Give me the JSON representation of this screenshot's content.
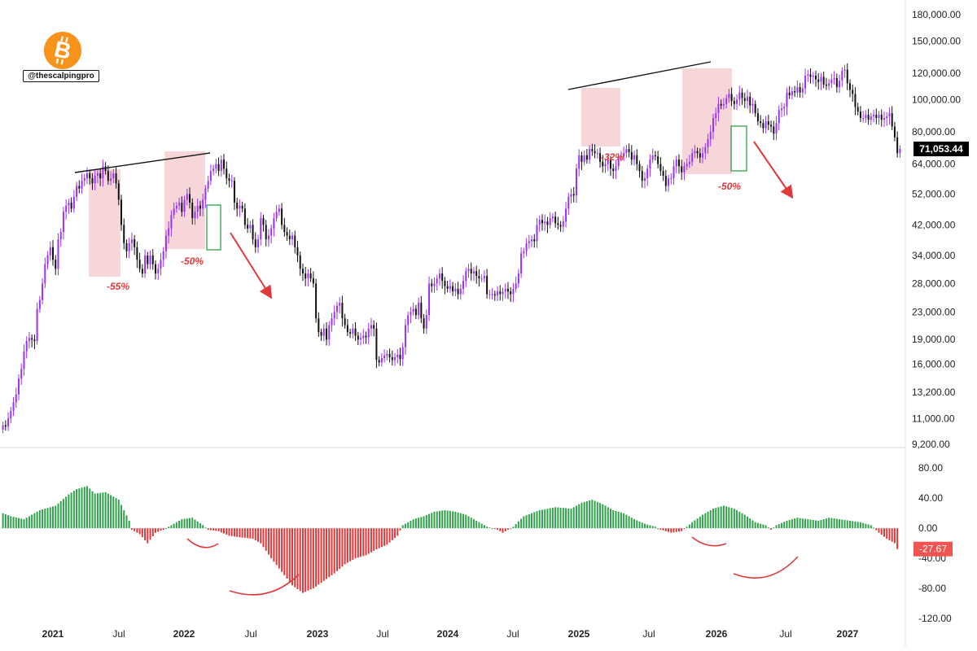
{
  "branding": {
    "logo_icon": "bitcoin-logo-icon",
    "logo_color": "#F7931A",
    "handle": "@thescalpingpro"
  },
  "colors": {
    "bull": "#9B30FF",
    "bear": "#111111",
    "hist_pos": "#2FA24A",
    "hist_neg": "#E0393B",
    "annotation": "#E0393B",
    "zone_fill": "#F6CFD4",
    "green_box": "#2FA24A",
    "price_tag_bg": "#000000",
    "neg_tag_bg": "#F05350"
  },
  "chart_data": [
    {
      "type": "candlestick",
      "scale": "log",
      "ylim": [
        9200,
        180000
      ],
      "xlim": [
        "2020-10-12",
        "2027-05-03"
      ],
      "y_ticks": [
        "180,000.00",
        "150,000.00",
        "120,000.00",
        "100,000.00",
        "80,000.00",
        "64,000.00",
        "52,000.00",
        "42,000.00",
        "34,000.00",
        "28,000.00",
        "23,000.00",
        "19,000.00",
        "16,000.00",
        "13,200.00",
        "11,000.00",
        "9,200.00"
      ],
      "last_price_label": "71,053.44",
      "candles_weekly_close": [
        10500,
        10400,
        11000,
        11600,
        12300,
        13000,
        14500,
        15500,
        17500,
        18800,
        19200,
        19000,
        18800,
        23500,
        25000,
        28000,
        32000,
        34000,
        36000,
        33000,
        31000,
        38000,
        40000,
        46000,
        48000,
        49000,
        47000,
        51000,
        55000,
        54000,
        57000,
        58000,
        60000,
        58000,
        56000,
        59000,
        60000,
        58000,
        63000,
        61000,
        57000,
        58000,
        60000,
        56000,
        50000,
        42000,
        37000,
        35000,
        37000,
        38000,
        36000,
        33000,
        31000,
        30000,
        34000,
        32000,
        34000,
        32000,
        30000,
        31000,
        33000,
        35000,
        39000,
        41000,
        45000,
        47000,
        48000,
        49000,
        46000,
        50000,
        52000,
        49000,
        44000,
        46000,
        48000,
        47000,
        50000,
        54000,
        57000,
        61000,
        62000,
        64000,
        61000,
        66000,
        62000,
        58000,
        57000,
        57000,
        49000,
        47000,
        48000,
        47000,
        42000,
        41000,
        42000,
        38000,
        36000,
        38000,
        44000,
        42000,
        38000,
        39000,
        41000,
        44000,
        46000,
        47000,
        42000,
        40000,
        39000,
        38000,
        39000,
        36000,
        34000,
        31000,
        30000,
        29000,
        30000,
        29000,
        28000,
        22000,
        20000,
        19500,
        20500,
        19000,
        21000,
        22000,
        23000,
        24000,
        24500,
        22000,
        21000,
        20000,
        19800,
        20500,
        19500,
        19000,
        19200,
        19500,
        19300,
        20500,
        21000,
        20500,
        16500,
        16200,
        16700,
        17000,
        17200,
        16800,
        16500,
        16800,
        17100,
        16600,
        18000,
        21000,
        22500,
        23000,
        23500,
        22500,
        24500,
        22000,
        20500,
        22500,
        28000,
        27500,
        28000,
        29000,
        30000,
        28500,
        27500,
        27000,
        27500,
        26500,
        27000,
        26000,
        27000,
        28500,
        30500,
        31000,
        30000,
        30500,
        29500,
        29000,
        29000,
        29500,
        26000,
        26000,
        26000,
        25800,
        26500,
        26000,
        26500,
        27000,
        26500,
        26000,
        27000,
        28000,
        30000,
        34500,
        35000,
        37000,
        37500,
        38000,
        37500,
        42000,
        43500,
        42500,
        43000,
        42000,
        44000,
        44500,
        42500,
        42000,
        41500,
        43000,
        47000,
        51000,
        52000,
        51500,
        62000,
        68000,
        65000,
        68000,
        66000,
        71000,
        70000,
        69000,
        69000,
        65000,
        63000,
        64000,
        66000,
        62000,
        61000,
        63000,
        67000,
        67500,
        69000,
        71000,
        69500,
        66000,
        68000,
        64000,
        61000,
        57000,
        58000,
        62000,
        66000,
        68000,
        67500,
        64000,
        61000,
        59000,
        55000,
        58000,
        58000,
        63000,
        66000,
        63000,
        60500,
        63000,
        64000,
        65000,
        69000,
        70000,
        69000,
        67000,
        69000,
        72000,
        76000,
        80000,
        88000,
        91000,
        97000,
        96000,
        97000,
        101000,
        104000,
        99000,
        97000,
        100000,
        105000,
        101000,
        99000,
        102000,
        96000,
        97000,
        91000,
        86000,
        85000,
        82000,
        86000,
        84000,
        83000,
        79000,
        85000,
        93000,
        94000,
        95000,
        105000,
        103000,
        106000,
        105000,
        109000,
        105000,
        108000,
        118000,
        119000,
        117000,
        118000,
        115000,
        113000,
        117000,
        111000,
        110000,
        112000,
        115000,
        116000,
        109000,
        114000,
        122000,
        123000,
        112000,
        107000,
        104000,
        95000,
        92000,
        88000,
        88000,
        90000,
        87000,
        89000,
        90000,
        88000,
        90000,
        87000,
        88000,
        89000,
        91000,
        83000,
        77000,
        69000,
        71053.44
      ]
    },
    {
      "type": "histogram",
      "ylim": [
        -120,
        90
      ],
      "y_ticks": [
        "80.00",
        "40.00",
        "0.00",
        "-40.00",
        "-80.00",
        "-120.00"
      ],
      "last_value_label": "-27.67",
      "last_value": -27.67,
      "anchors_value": [
        [
          0,
          20
        ],
        [
          3,
          16
        ],
        [
          8,
          12
        ],
        [
          14,
          24
        ],
        [
          20,
          30
        ],
        [
          25,
          45
        ],
        [
          28,
          52
        ],
        [
          32,
          56
        ],
        [
          35,
          46
        ],
        [
          39,
          48
        ],
        [
          44,
          38
        ],
        [
          46,
          24
        ],
        [
          48,
          10
        ],
        [
          49,
          -2
        ],
        [
          52,
          -8
        ],
        [
          55,
          -20
        ],
        [
          58,
          -6
        ],
        [
          61,
          -2
        ],
        [
          65,
          6
        ],
        [
          68,
          12
        ],
        [
          72,
          14
        ],
        [
          76,
          4
        ],
        [
          78,
          -2
        ],
        [
          82,
          -4
        ],
        [
          86,
          -10
        ],
        [
          90,
          -12
        ],
        [
          95,
          -14
        ],
        [
          98,
          -20
        ],
        [
          102,
          -40
        ],
        [
          106,
          -58
        ],
        [
          110,
          -76
        ],
        [
          114,
          -86
        ],
        [
          118,
          -80
        ],
        [
          122,
          -70
        ],
        [
          126,
          -60
        ],
        [
          130,
          -48
        ],
        [
          134,
          -40
        ],
        [
          138,
          -36
        ],
        [
          142,
          -28
        ],
        [
          146,
          -22
        ],
        [
          150,
          -10
        ],
        [
          152,
          4
        ],
        [
          156,
          12
        ],
        [
          160,
          16
        ],
        [
          164,
          22
        ],
        [
          168,
          24
        ],
        [
          172,
          22
        ],
        [
          176,
          18
        ],
        [
          180,
          10
        ],
        [
          184,
          2
        ],
        [
          188,
          -2
        ],
        [
          190,
          -6
        ],
        [
          194,
          2
        ],
        [
          198,
          16
        ],
        [
          204,
          24
        ],
        [
          210,
          28
        ],
        [
          216,
          26
        ],
        [
          220,
          34
        ],
        [
          224,
          38
        ],
        [
          228,
          32
        ],
        [
          232,
          24
        ],
        [
          236,
          20
        ],
        [
          240,
          12
        ],
        [
          244,
          6
        ],
        [
          248,
          2
        ],
        [
          250,
          -2
        ],
        [
          254,
          -6
        ],
        [
          258,
          -4
        ],
        [
          262,
          8
        ],
        [
          266,
          18
        ],
        [
          270,
          26
        ],
        [
          274,
          30
        ],
        [
          278,
          26
        ],
        [
          282,
          18
        ],
        [
          286,
          8
        ],
        [
          290,
          4
        ],
        [
          292,
          -2
        ],
        [
          294,
          4
        ],
        [
          298,
          10
        ],
        [
          302,
          14
        ],
        [
          306,
          12
        ],
        [
          310,
          10
        ],
        [
          314,
          14
        ],
        [
          318,
          12
        ],
        [
          322,
          10
        ],
        [
          326,
          8
        ],
        [
          330,
          4
        ],
        [
          333,
          -6
        ],
        [
          336,
          -14
        ],
        [
          339,
          -20
        ],
        [
          340,
          -27.67
        ]
      ]
    }
  ],
  "x_axis_labels": [
    "2021",
    "Jul",
    "2022",
    "Jul",
    "2023",
    "Jul",
    "2024",
    "Jul",
    "2025",
    "Jul",
    "2026",
    "Jul",
    "2027"
  ],
  "annotations": {
    "drawdowns": [
      "-55%",
      "-50%",
      "-32%",
      "-50%"
    ]
  }
}
